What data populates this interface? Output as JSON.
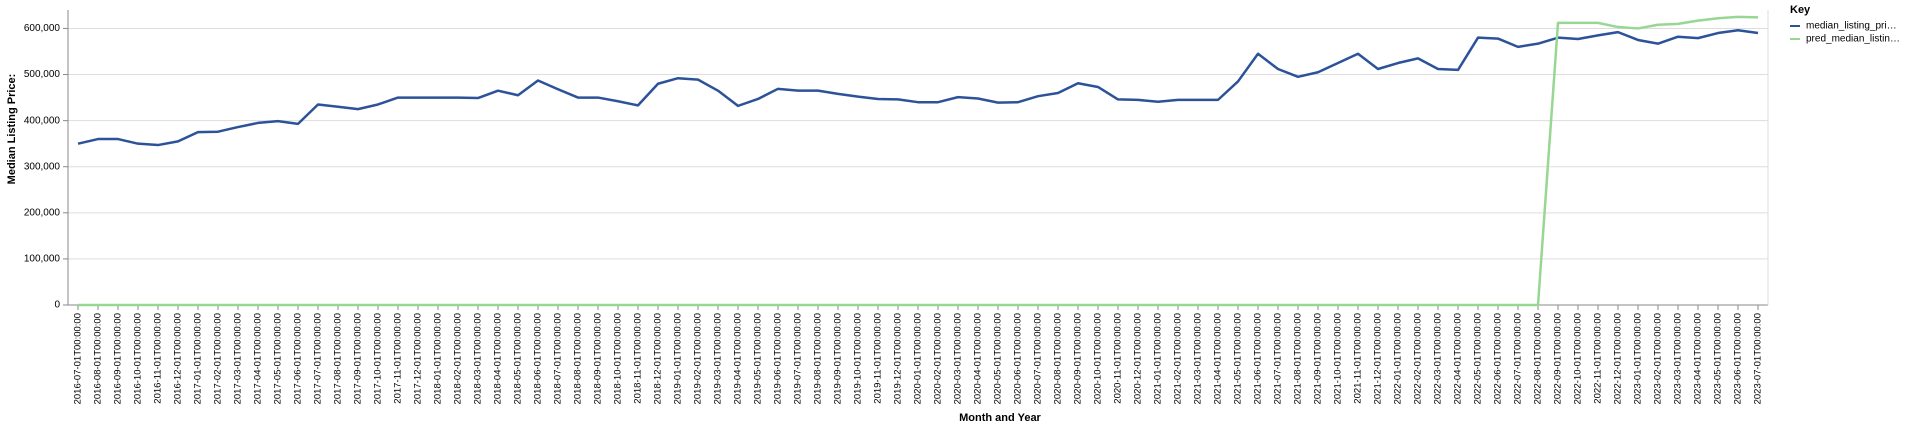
{
  "chart_data": {
    "type": "line",
    "x_label": "Month and Year",
    "y_label": "Median Listing Price:",
    "legend_title": "Key",
    "categories": [
      "2016-07-01T00:00:00",
      "2016-08-01T00:00:00",
      "2016-09-01T00:00:00",
      "2016-10-01T00:00:00",
      "2016-11-01T00:00:00",
      "2016-12-01T00:00:00",
      "2017-01-01T00:00:00",
      "2017-02-01T00:00:00",
      "2017-03-01T00:00:00",
      "2017-04-01T00:00:00",
      "2017-05-01T00:00:00",
      "2017-06-01T00:00:00",
      "2017-07-01T00:00:00",
      "2017-08-01T00:00:00",
      "2017-09-01T00:00:00",
      "2017-10-01T00:00:00",
      "2017-11-01T00:00:00",
      "2017-12-01T00:00:00",
      "2018-01-01T00:00:00",
      "2018-02-01T00:00:00",
      "2018-03-01T00:00:00",
      "2018-04-01T00:00:00",
      "2018-05-01T00:00:00",
      "2018-06-01T00:00:00",
      "2018-07-01T00:00:00",
      "2018-08-01T00:00:00",
      "2018-09-01T00:00:00",
      "2018-10-01T00:00:00",
      "2018-11-01T00:00:00",
      "2018-12-01T00:00:00",
      "2019-01-01T00:00:00",
      "2019-02-01T00:00:00",
      "2019-03-01T00:00:00",
      "2019-04-01T00:00:00",
      "2019-05-01T00:00:00",
      "2019-06-01T00:00:00",
      "2019-07-01T00:00:00",
      "2019-08-01T00:00:00",
      "2019-09-01T00:00:00",
      "2019-10-01T00:00:00",
      "2019-11-01T00:00:00",
      "2019-12-01T00:00:00",
      "2020-01-01T00:00:00",
      "2020-02-01T00:00:00",
      "2020-03-01T00:00:00",
      "2020-04-01T00:00:00",
      "2020-05-01T00:00:00",
      "2020-06-01T00:00:00",
      "2020-07-01T00:00:00",
      "2020-08-01T00:00:00",
      "2020-09-01T00:00:00",
      "2020-10-01T00:00:00",
      "2020-11-01T00:00:00",
      "2020-12-01T00:00:00",
      "2021-01-01T00:00:00",
      "2021-02-01T00:00:00",
      "2021-03-01T00:00:00",
      "2021-04-01T00:00:00",
      "2021-05-01T00:00:00",
      "2021-06-01T00:00:00",
      "2021-07-01T00:00:00",
      "2021-08-01T00:00:00",
      "2021-09-01T00:00:00",
      "2021-10-01T00:00:00",
      "2021-11-01T00:00:00",
      "2021-12-01T00:00:00",
      "2022-01-01T00:00:00",
      "2022-02-01T00:00:00",
      "2022-03-01T00:00:00",
      "2022-04-01T00:00:00",
      "2022-05-01T00:00:00",
      "2022-06-01T00:00:00",
      "2022-07-01T00:00:00",
      "2022-08-01T00:00:00",
      "2022-09-01T00:00:00",
      "2022-10-01T00:00:00",
      "2022-11-01T00:00:00",
      "2022-12-01T00:00:00",
      "2023-01-01T00:00:00",
      "2023-02-01T00:00:00",
      "2023-03-01T00:00:00",
      "2023-04-01T00:00:00",
      "2023-05-01T00:00:00",
      "2023-06-01T00:00:00",
      "2023-07-01T00:00:00"
    ],
    "series": [
      {
        "name": "median_listing_pri…",
        "color": "#2c5299",
        "values": [
          350000,
          360000,
          360000,
          350000,
          347000,
          355000,
          375000,
          376000,
          386000,
          395000,
          399000,
          393000,
          435000,
          430000,
          425000,
          435000,
          450000,
          450000,
          450000,
          450000,
          449000,
          465000,
          455000,
          487000,
          468000,
          450000,
          450000,
          442000,
          433000,
          480000,
          492000,
          489000,
          465000,
          432000,
          447000,
          469000,
          465000,
          465000,
          458000,
          452000,
          447000,
          446000,
          440000,
          440000,
          451000,
          448000,
          439000,
          440000,
          453000,
          460000,
          481000,
          473000,
          446000,
          445000,
          441000,
          445000,
          445000,
          445000,
          485000,
          545000,
          512000,
          495000,
          505000,
          525000,
          545000,
          512000,
          525000,
          535000,
          512000,
          510000,
          580000,
          578000,
          560000,
          567000,
          580000,
          577000,
          585000,
          592000,
          575000,
          567000,
          582000,
          579000,
          590000,
          596000,
          590000
        ]
      },
      {
        "name": "pred_median_listin…",
        "color": "#98d793",
        "values": [
          0,
          0,
          0,
          0,
          0,
          0,
          0,
          0,
          0,
          0,
          0,
          0,
          0,
          0,
          0,
          0,
          0,
          0,
          0,
          0,
          0,
          0,
          0,
          0,
          0,
          0,
          0,
          0,
          0,
          0,
          0,
          0,
          0,
          0,
          0,
          0,
          0,
          0,
          0,
          0,
          0,
          0,
          0,
          0,
          0,
          0,
          0,
          0,
          0,
          0,
          0,
          0,
          0,
          0,
          0,
          0,
          0,
          0,
          0,
          0,
          0,
          0,
          0,
          0,
          0,
          0,
          0,
          0,
          0,
          0,
          0,
          0,
          0,
          0,
          612000,
          612000,
          612000,
          603000,
          600000,
          608000,
          610000,
          617000,
          622000,
          625000,
          624000
        ]
      }
    ],
    "ylim": [
      0,
      640000
    ],
    "yticks": [
      0,
      {
        "value": 100000,
        "label": "100,000"
      },
      {
        "value": 200000,
        "label": "200,000"
      },
      {
        "value": 300000,
        "label": "300,000"
      },
      {
        "value": 400000,
        "label": "400,000"
      },
      {
        "value": 500000,
        "label": "500,000"
      },
      {
        "value": 600000,
        "label": "600,000"
      }
    ],
    "grid": true
  }
}
